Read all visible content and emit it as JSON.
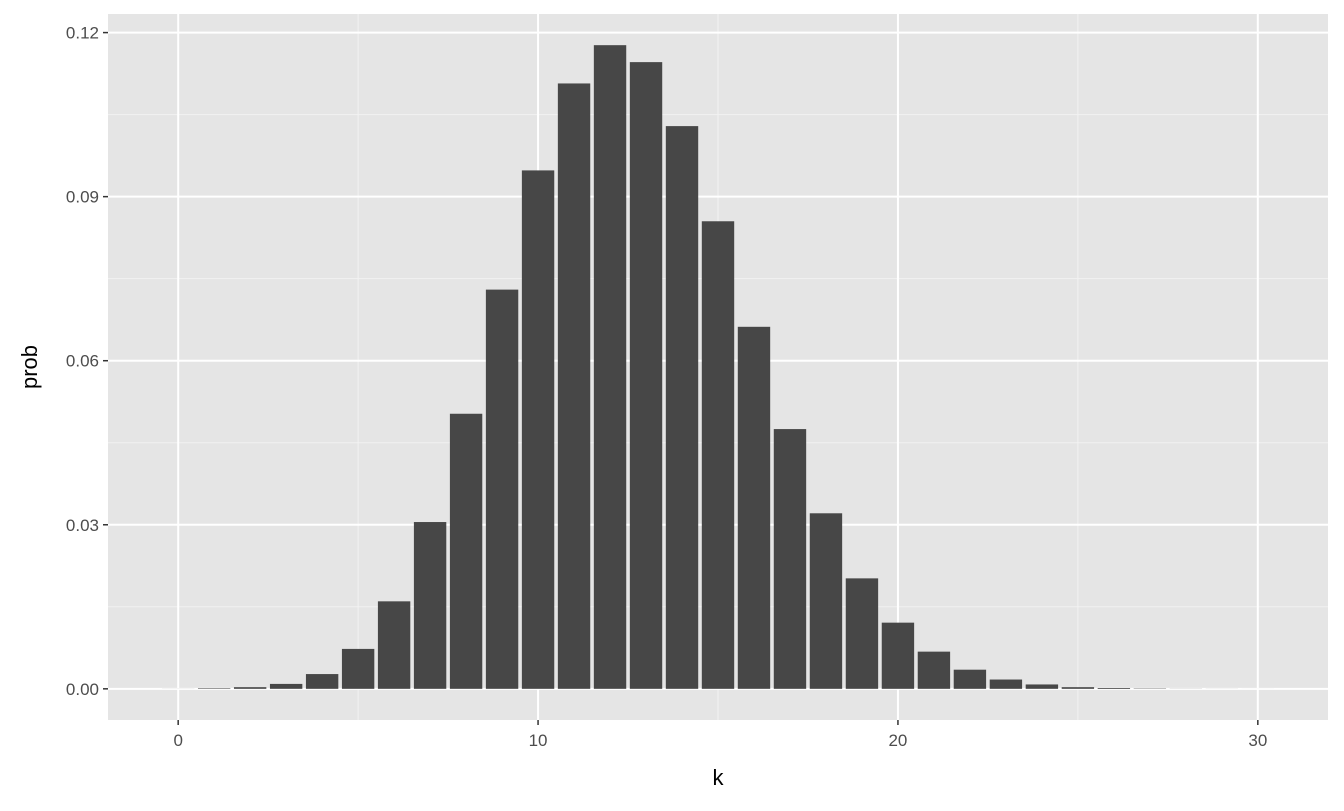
{
  "chart_data": {
    "type": "bar",
    "title": "",
    "xlabel": "k",
    "ylabel": "prob",
    "xlim": [
      -1.95,
      31.95
    ],
    "ylim": [
      -0.0057,
      0.1234
    ],
    "x_ticks": [
      0,
      10,
      20,
      30
    ],
    "x_tick_labels": [
      "0",
      "10",
      "20",
      "30"
    ],
    "y_ticks": [
      0,
      0.03,
      0.06,
      0.09,
      0.12
    ],
    "y_tick_labels": [
      "0.00",
      "0.03",
      "0.06",
      "0.09",
      "0.12"
    ],
    "grid": true,
    "bar_color": "#474747",
    "panel_color": "#e5e5e5",
    "x": [
      0,
      1,
      2,
      3,
      4,
      5,
      6,
      7,
      8,
      9,
      10,
      11,
      12,
      13,
      14,
      15,
      16,
      17,
      18,
      19,
      20,
      21,
      22,
      23,
      24,
      25,
      26,
      27,
      28,
      29,
      30
    ],
    "values": [
      1e-05,
      0.0001,
      0.0003,
      0.0009,
      0.0027,
      0.0073,
      0.016,
      0.0305,
      0.0503,
      0.073,
      0.0948,
      0.1107,
      0.1177,
      0.1146,
      0.1029,
      0.0855,
      0.0662,
      0.0475,
      0.0321,
      0.0202,
      0.0121,
      0.0068,
      0.0035,
      0.0017,
      0.0008,
      0.0003,
      0.00015,
      6e-05,
      2e-05,
      1e-05,
      3e-06
    ]
  }
}
